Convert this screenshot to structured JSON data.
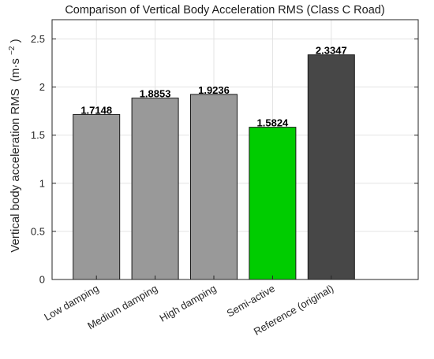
{
  "chart_data": {
    "type": "bar",
    "title": "Comparison of Vertical Body Acceleration RMS (Class C Road)",
    "ylabel": "Vertical body acceleration RMS",
    "ylabel_unit": "(m·s",
    "ylabel_exp": "−2",
    "ylabel_close": ")",
    "xlabel": "",
    "categories": [
      "Low damping",
      "Medium damping",
      "High damping",
      "Semi-active",
      "Reference (original)"
    ],
    "values": [
      1.7148,
      1.8853,
      1.9236,
      1.5824,
      2.3347
    ],
    "value_labels": [
      "1.7148",
      "1.8853",
      "1.9236",
      "1.5824",
      "2.3347"
    ],
    "colors": [
      "#999999",
      "#999999",
      "#999999",
      "#00cc00",
      "#474747"
    ],
    "ylim": [
      0,
      2.7
    ],
    "yticks": [
      0,
      0.5,
      1,
      1.5,
      2,
      2.5
    ],
    "ytick_labels": [
      "0",
      "0.5",
      "1",
      "1.5",
      "2",
      "2.5"
    ],
    "grid": true,
    "legend": "none"
  }
}
